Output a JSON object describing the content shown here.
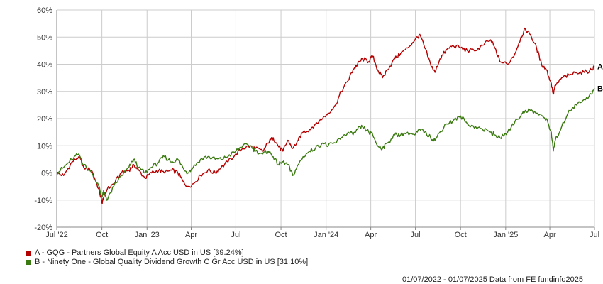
{
  "chart_data": {
    "type": "line",
    "ylim": [
      -20,
      60
    ],
    "y_ticks": [
      "60%",
      "50%",
      "40%",
      "30%",
      "20%",
      "10%",
      "0%",
      "-10%",
      "-20%"
    ],
    "y_tick_values": [
      60,
      50,
      40,
      30,
      20,
      10,
      0,
      -10,
      -20
    ],
    "x_ticks": [
      "Jul '22",
      "Oct",
      "Jan '23",
      "Apr",
      "Jul",
      "Oct",
      "Jan '24",
      "Apr",
      "Jul",
      "Oct",
      "Jan '25",
      "Apr",
      "Jul"
    ],
    "x_tick_dates": [
      "2022-07-01",
      "2022-10-01",
      "2023-01-01",
      "2023-04-01",
      "2023-07-01",
      "2023-10-01",
      "2024-01-01",
      "2024-04-01",
      "2024-07-01",
      "2024-10-01",
      "2025-01-01",
      "2025-04-01",
      "2025-07-01"
    ],
    "xlim": [
      "2022-07-01",
      "2025-07-01"
    ],
    "grid": true,
    "zero_line": "dotted",
    "series": [
      {
        "name": "A - GQG - Partners Global Equity A Acc USD in US [39.24%]",
        "end_label": "A",
        "color": "#b30000",
        "points": [
          [
            "2022-07-01",
            0
          ],
          [
            "2022-07-15",
            -1
          ],
          [
            "2022-08-01",
            4
          ],
          [
            "2022-08-15",
            6
          ],
          [
            "2022-08-25",
            2
          ],
          [
            "2022-09-10",
            1
          ],
          [
            "2022-09-25",
            -6
          ],
          [
            "2022-10-01",
            -11
          ],
          [
            "2022-10-05",
            -9
          ],
          [
            "2022-10-12",
            -6
          ],
          [
            "2022-10-25",
            -4
          ],
          [
            "2022-11-10",
            0
          ],
          [
            "2022-11-25",
            1
          ],
          [
            "2022-12-05",
            3
          ],
          [
            "2022-12-15",
            1
          ],
          [
            "2022-12-28",
            -2
          ],
          [
            "2023-01-10",
            0
          ],
          [
            "2023-01-25",
            1
          ],
          [
            "2023-02-05",
            0
          ],
          [
            "2023-02-20",
            1
          ],
          [
            "2023-03-05",
            0
          ],
          [
            "2023-03-15",
            -3
          ],
          [
            "2023-03-25",
            -5
          ],
          [
            "2023-04-05",
            -4
          ],
          [
            "2023-04-20",
            -1
          ],
          [
            "2023-05-05",
            1
          ],
          [
            "2023-05-20",
            0
          ],
          [
            "2023-06-01",
            2
          ],
          [
            "2023-06-15",
            4
          ],
          [
            "2023-07-01",
            7
          ],
          [
            "2023-07-15",
            9
          ],
          [
            "2023-07-31",
            10
          ],
          [
            "2023-08-10",
            9
          ],
          [
            "2023-08-25",
            8
          ],
          [
            "2023-09-05",
            11
          ],
          [
            "2023-09-15",
            13
          ],
          [
            "2023-09-25",
            10
          ],
          [
            "2023-10-05",
            8
          ],
          [
            "2023-10-15",
            12
          ],
          [
            "2023-10-25",
            9
          ],
          [
            "2023-11-05",
            12
          ],
          [
            "2023-11-15",
            15
          ],
          [
            "2023-11-28",
            16
          ],
          [
            "2023-12-10",
            18
          ],
          [
            "2023-12-25",
            20
          ],
          [
            "2024-01-05",
            22
          ],
          [
            "2024-01-20",
            25
          ],
          [
            "2024-02-01",
            30
          ],
          [
            "2024-02-15",
            34
          ],
          [
            "2024-02-25",
            38
          ],
          [
            "2024-03-05",
            40
          ],
          [
            "2024-03-15",
            42
          ],
          [
            "2024-03-28",
            41
          ],
          [
            "2024-04-05",
            43
          ],
          [
            "2024-04-15",
            38
          ],
          [
            "2024-04-25",
            35
          ],
          [
            "2024-05-05",
            38
          ],
          [
            "2024-05-20",
            42
          ],
          [
            "2024-06-01",
            44
          ],
          [
            "2024-06-15",
            46
          ],
          [
            "2024-06-30",
            49
          ],
          [
            "2024-07-10",
            51
          ],
          [
            "2024-07-20",
            46
          ],
          [
            "2024-08-01",
            40
          ],
          [
            "2024-08-10",
            37
          ],
          [
            "2024-08-20",
            42
          ],
          [
            "2024-09-01",
            45
          ],
          [
            "2024-09-15",
            47
          ],
          [
            "2024-10-01",
            46
          ],
          [
            "2024-10-15",
            45
          ],
          [
            "2024-11-01",
            45
          ],
          [
            "2024-11-15",
            47
          ],
          [
            "2024-12-01",
            49
          ],
          [
            "2024-12-10",
            46
          ],
          [
            "2024-12-20",
            41
          ],
          [
            "2025-01-05",
            40
          ],
          [
            "2025-01-20",
            44
          ],
          [
            "2025-02-01",
            50
          ],
          [
            "2025-02-10",
            53
          ],
          [
            "2025-02-20",
            51
          ],
          [
            "2025-03-05",
            46
          ],
          [
            "2025-03-15",
            40
          ],
          [
            "2025-03-25",
            38
          ],
          [
            "2025-04-04",
            33
          ],
          [
            "2025-04-08",
            29
          ],
          [
            "2025-04-12",
            32
          ],
          [
            "2025-04-25",
            35
          ],
          [
            "2025-05-10",
            36
          ],
          [
            "2025-05-25",
            37
          ],
          [
            "2025-06-10",
            37
          ],
          [
            "2025-06-25",
            38
          ],
          [
            "2025-07-01",
            39.24
          ]
        ]
      },
      {
        "name": "B - Ninety One - Global Quality Dividend Growth C Gr Acc USD in US [31.10%]",
        "end_label": "B",
        "color": "#3a7a10",
        "points": [
          [
            "2022-07-01",
            0
          ],
          [
            "2022-07-15",
            2
          ],
          [
            "2022-08-01",
            5
          ],
          [
            "2022-08-15",
            7
          ],
          [
            "2022-08-25",
            3
          ],
          [
            "2022-09-10",
            0
          ],
          [
            "2022-09-25",
            -5
          ],
          [
            "2022-10-01",
            -9
          ],
          [
            "2022-10-05",
            -7
          ],
          [
            "2022-10-12",
            -10
          ],
          [
            "2022-10-25",
            -5
          ],
          [
            "2022-11-10",
            -1
          ],
          [
            "2022-11-25",
            2
          ],
          [
            "2022-12-05",
            5
          ],
          [
            "2022-12-15",
            2
          ],
          [
            "2022-12-28",
            0
          ],
          [
            "2023-01-10",
            2
          ],
          [
            "2023-01-25",
            4
          ],
          [
            "2023-02-05",
            6
          ],
          [
            "2023-02-20",
            4
          ],
          [
            "2023-03-05",
            5
          ],
          [
            "2023-03-15",
            2
          ],
          [
            "2023-03-25",
            0
          ],
          [
            "2023-04-05",
            2
          ],
          [
            "2023-04-20",
            5
          ],
          [
            "2023-05-05",
            6
          ],
          [
            "2023-05-20",
            5
          ],
          [
            "2023-06-01",
            5
          ],
          [
            "2023-06-15",
            6
          ],
          [
            "2023-07-01",
            8
          ],
          [
            "2023-07-15",
            10
          ],
          [
            "2023-07-31",
            10
          ],
          [
            "2023-08-10",
            8
          ],
          [
            "2023-08-25",
            7
          ],
          [
            "2023-09-05",
            8
          ],
          [
            "2023-09-15",
            6
          ],
          [
            "2023-09-25",
            3
          ],
          [
            "2023-10-05",
            4
          ],
          [
            "2023-10-15",
            3
          ],
          [
            "2023-10-25",
            -1
          ],
          [
            "2023-11-05",
            3
          ],
          [
            "2023-11-15",
            6
          ],
          [
            "2023-11-28",
            8
          ],
          [
            "2023-12-10",
            9
          ],
          [
            "2023-12-25",
            11
          ],
          [
            "2024-01-05",
            10
          ],
          [
            "2024-01-20",
            11
          ],
          [
            "2024-02-01",
            13
          ],
          [
            "2024-02-15",
            15
          ],
          [
            "2024-02-25",
            14
          ],
          [
            "2024-03-05",
            16
          ],
          [
            "2024-03-15",
            17
          ],
          [
            "2024-03-28",
            15
          ],
          [
            "2024-04-05",
            14
          ],
          [
            "2024-04-15",
            10
          ],
          [
            "2024-04-25",
            9
          ],
          [
            "2024-05-05",
            11
          ],
          [
            "2024-05-20",
            14
          ],
          [
            "2024-06-01",
            14
          ],
          [
            "2024-06-15",
            15
          ],
          [
            "2024-06-30",
            14
          ],
          [
            "2024-07-10",
            16
          ],
          [
            "2024-07-20",
            15
          ],
          [
            "2024-08-01",
            13
          ],
          [
            "2024-08-10",
            12
          ],
          [
            "2024-08-20",
            15
          ],
          [
            "2024-09-01",
            18
          ],
          [
            "2024-09-15",
            19
          ],
          [
            "2024-10-01",
            21
          ],
          [
            "2024-10-15",
            18
          ],
          [
            "2024-11-01",
            17
          ],
          [
            "2024-11-15",
            16
          ],
          [
            "2024-12-01",
            15
          ],
          [
            "2024-12-10",
            14
          ],
          [
            "2024-12-20",
            13
          ],
          [
            "2025-01-05",
            15
          ],
          [
            "2025-01-20",
            19
          ],
          [
            "2025-02-01",
            21
          ],
          [
            "2025-02-10",
            23
          ],
          [
            "2025-02-20",
            23
          ],
          [
            "2025-03-05",
            22
          ],
          [
            "2025-03-15",
            21
          ],
          [
            "2025-03-25",
            20
          ],
          [
            "2025-04-04",
            15
          ],
          [
            "2025-04-08",
            8
          ],
          [
            "2025-04-12",
            12
          ],
          [
            "2025-04-25",
            17
          ],
          [
            "2025-05-10",
            23
          ],
          [
            "2025-05-25",
            25
          ],
          [
            "2025-06-10",
            27
          ],
          [
            "2025-06-25",
            29
          ],
          [
            "2025-07-01",
            31.1
          ]
        ]
      }
    ]
  },
  "footer_text": "01/07/2022 - 01/07/2025 Data from FE fundinfo2025",
  "colors": {
    "grid": "#cccccc",
    "axis": "#888888",
    "zero_line": "#000000"
  }
}
